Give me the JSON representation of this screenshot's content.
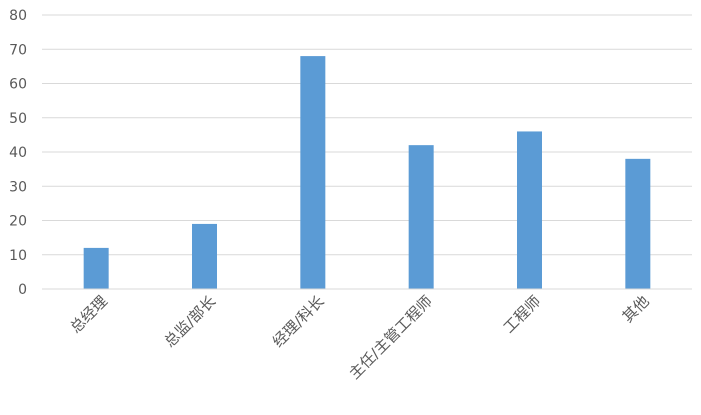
{
  "chart_data": {
    "type": "bar",
    "categories": [
      "总经理",
      "总监/部长",
      "经理/科长",
      "主任/主管工程师",
      "工程师",
      "其他"
    ],
    "values": [
      12,
      19,
      68,
      42,
      46,
      38
    ],
    "title": "",
    "xlabel": "",
    "ylabel": "",
    "ylim": [
      0,
      80
    ],
    "yticks": [
      0,
      10,
      20,
      30,
      40,
      50,
      60,
      70,
      80
    ],
    "grid": true,
    "legend": "none",
    "colors": {
      "bar": "#5B9BD5",
      "grid": "#D9D9D9",
      "text": "#595959"
    }
  }
}
